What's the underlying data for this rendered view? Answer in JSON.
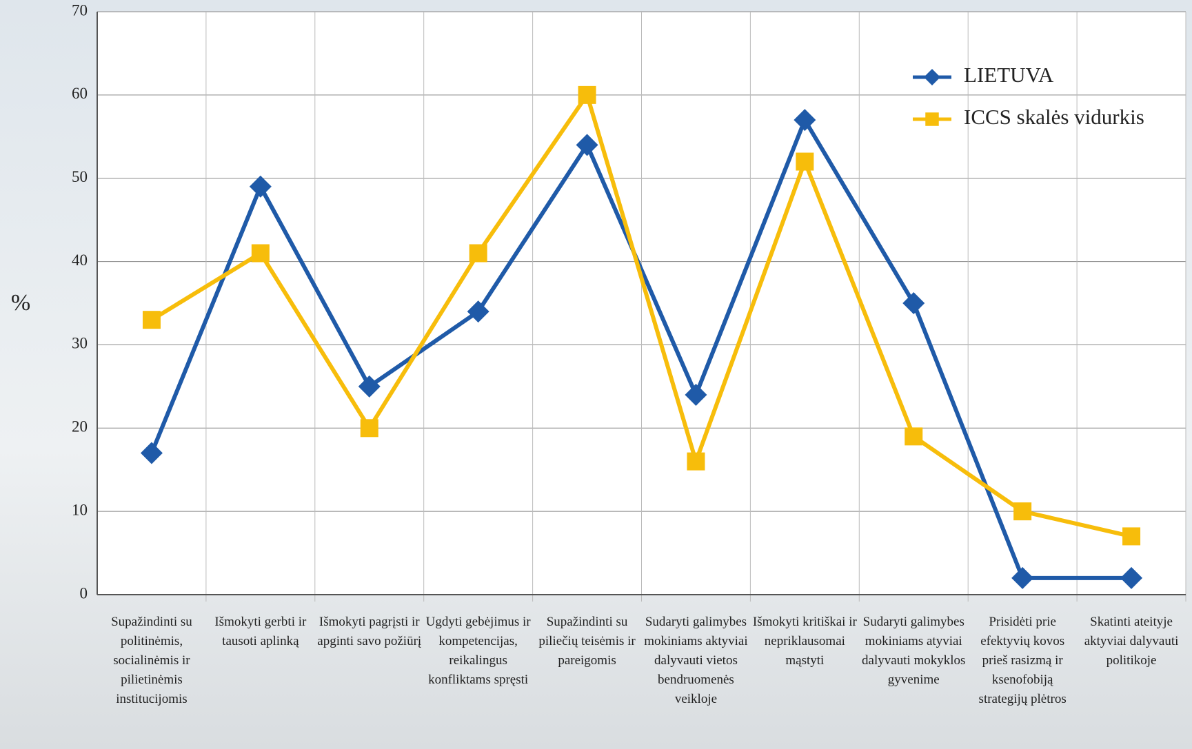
{
  "chart_data": {
    "type": "line",
    "y_label": "%",
    "categories": [
      "Supažindinti su politinėmis, socialinėmis ir pilietinėmis institucijomis",
      "Išmokyti gerbti ir tausoti aplinką",
      "Išmokyti pagrįsti ir apginti savo požiūrį",
      "Ugdyti gebėjimus ir kompetencijas, reikalingus konfliktams spręsti",
      "Supažindinti su piliečių teisėmis ir pareigomis",
      "Sudaryti galimybes mokiniams aktyviai dalyvauti vietos bendruomenės veikloje",
      "Išmokyti kritiškai ir nepriklausomai mąstyti",
      "Sudaryti galimybes mokiniams atyviai dalyvauti mokyklos gyvenime",
      "Prisidėti prie efektyvių kovos prieš rasizmą ir ksenofobiją strategijų plėtros",
      "Skatinti ateityje aktyviai dalyvauti politikoje"
    ],
    "series": [
      {
        "name": "LIETUVA",
        "color": "#1f5aa8",
        "marker": "diamond",
        "values": [
          17,
          49,
          25,
          34,
          54,
          24,
          57,
          35,
          2,
          2
        ]
      },
      {
        "name": "ICCS skalės vidurkis",
        "color": "#f7bd0b",
        "marker": "square",
        "values": [
          33,
          41,
          20,
          41,
          60,
          16,
          52,
          19,
          10,
          7
        ]
      }
    ],
    "ylim": [
      0,
      70
    ],
    "yticks": [
      0,
      10,
      20,
      30,
      40,
      50,
      60,
      70
    ],
    "grid": true,
    "legend": "upper right"
  }
}
